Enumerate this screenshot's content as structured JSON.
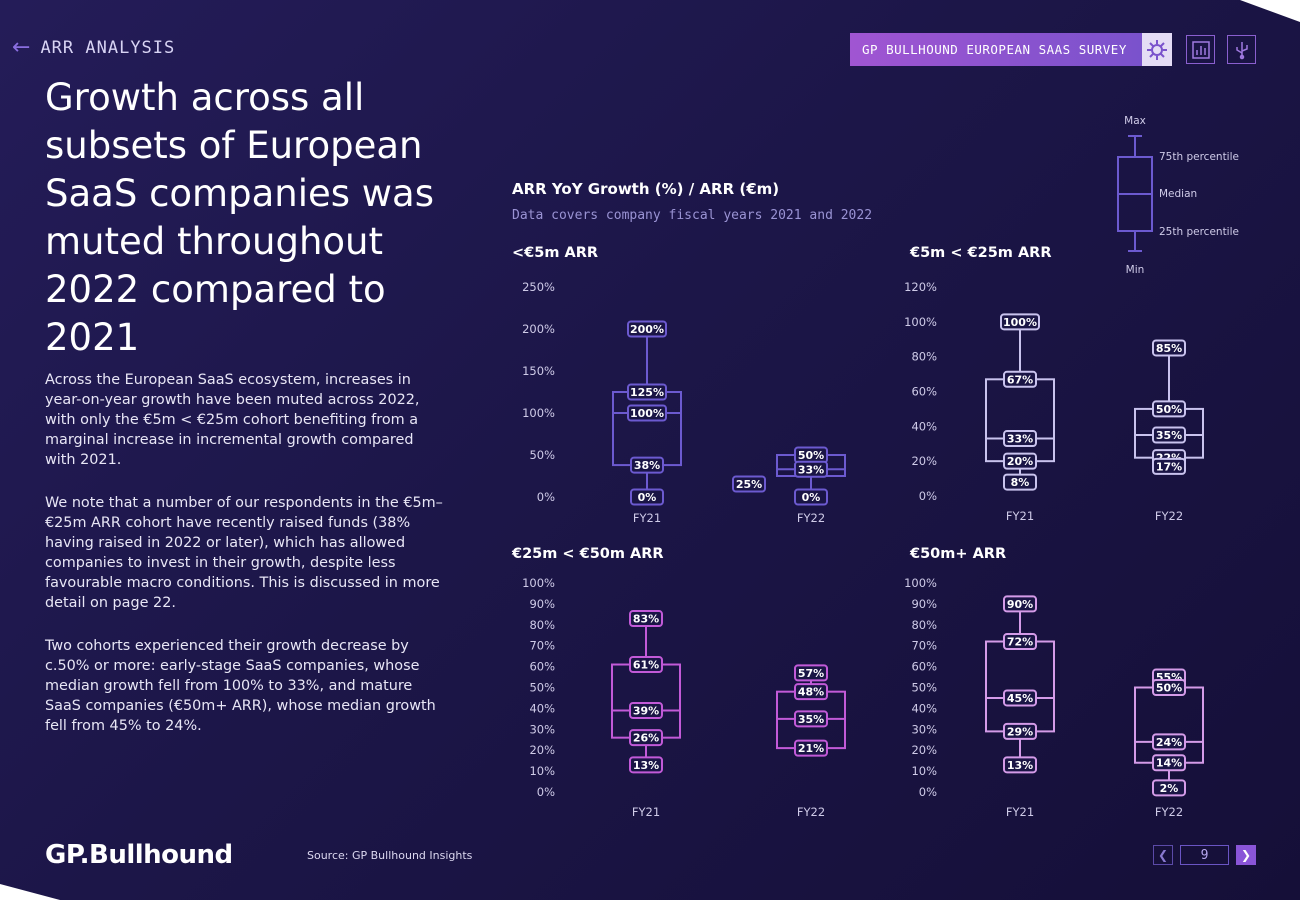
{
  "header": {
    "section_label": "ARR ANALYSIS",
    "survey_label": "GP BULLHOUND EUROPEAN SAAS SURVEY"
  },
  "title": "Growth across all subsets of European SaaS companies was muted throughout 2022 compared to 2021",
  "paragraphs": [
    "Across the European SaaS ecosystem, increases in year-on-year growth have been muted across 2022, with only the €5m < €25m cohort benefiting from a marginal increase in incremental growth compared with 2021.",
    "We note that a number of our respondents in the €5m–€25m ARR cohort have recently raised funds (38% having raised in 2022 or later), which has allowed companies to invest in their growth, despite less favourable macro conditions. This is discussed in more detail on page 22.",
    "Two cohorts experienced their growth decrease by c.50% or more: early-stage SaaS companies, whose median growth fell from 100% to 33%, and mature SaaS companies (€50m+ ARR), whose median growth fell from 45% to 24%."
  ],
  "footer": {
    "logo": "GP.Bullhound",
    "source": "Source: GP Bullhound Insights",
    "page_number": "9"
  },
  "colors": {
    "panel1": "#6c5ad0",
    "panel2": "#c9c3ee",
    "panel3": "#c25ad8",
    "panel4": "#d49be8"
  },
  "chart_data": {
    "type": "boxplot",
    "title": "ARR YoY Growth (%) / ARR (€m)",
    "subtitle": "Data covers company fiscal years 2021 and 2022",
    "legend": {
      "max": "Max",
      "q3": "75th percentile",
      "median": "Median",
      "q1": "25th percentile",
      "min": "Min"
    },
    "panels": [
      {
        "title": "<€5m ARR",
        "ylim": [
          0,
          250
        ],
        "ticks": [
          0,
          50,
          100,
          150,
          200,
          250
        ],
        "series": [
          {
            "category": "FY21",
            "min": 0,
            "q1": 38,
            "median": 100,
            "q3": 125,
            "max": 200
          },
          {
            "category": "FY22",
            "min": 0,
            "q1": 25,
            "median": 33,
            "q3": 50,
            "max": 50
          }
        ]
      },
      {
        "title": "€5m < €25m ARR",
        "ylim": [
          0,
          120
        ],
        "ticks": [
          0,
          20,
          40,
          60,
          80,
          100,
          120
        ],
        "series": [
          {
            "category": "FY21",
            "min": 8,
            "q1": 20,
            "median": 33,
            "q3": 67,
            "max": 100
          },
          {
            "category": "FY22",
            "min": 17,
            "q1": 22,
            "median": 35,
            "q3": 50,
            "max": 85
          }
        ]
      },
      {
        "title": "€25m < €50m ARR",
        "ylim": [
          0,
          100
        ],
        "ticks": [
          0,
          10,
          20,
          30,
          40,
          50,
          60,
          70,
          80,
          90,
          100
        ],
        "series": [
          {
            "category": "FY21",
            "min": 13,
            "q1": 26,
            "median": 39,
            "q3": 61,
            "max": 83
          },
          {
            "category": "FY22",
            "min": 21,
            "q1": 21,
            "median": 35,
            "q3": 48,
            "max": 57
          }
        ]
      },
      {
        "title": "€50m+ ARR",
        "ylim": [
          0,
          100
        ],
        "ticks": [
          0,
          10,
          20,
          30,
          40,
          50,
          60,
          70,
          80,
          90,
          100
        ],
        "series": [
          {
            "category": "FY21",
            "min": 13,
            "q1": 29,
            "median": 45,
            "q3": 72,
            "max": 90
          },
          {
            "category": "FY22",
            "min": 2,
            "q1": 14,
            "median": 24,
            "q3": 50,
            "max": 55
          }
        ]
      }
    ]
  }
}
